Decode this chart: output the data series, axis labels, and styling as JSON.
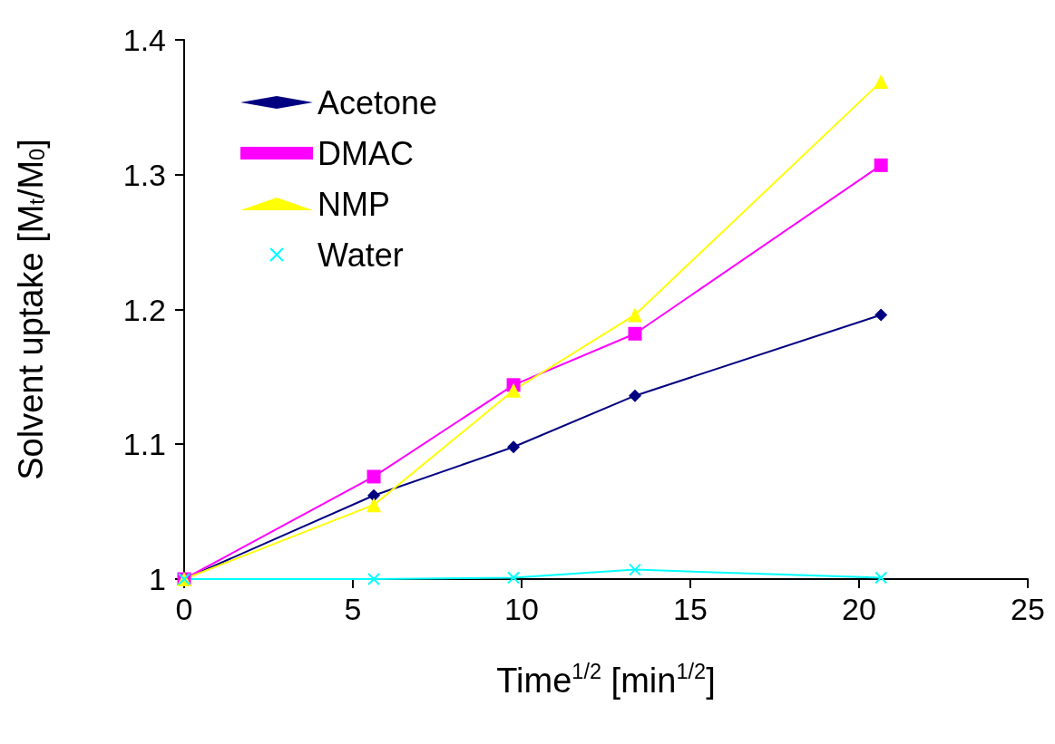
{
  "chart_data": {
    "type": "line",
    "xlabel": "Time$^{1/2}$ [min$^{1/2}$]",
    "ylabel": "Solvent uptake [M$_{t}$/M$_{0}$]",
    "x": [
      0,
      5.62,
      9.76,
      13.36,
      20.65
    ],
    "series": [
      {
        "name": "Acetone",
        "color": "#000080",
        "marker": "diamond",
        "values": [
          1,
          1.062,
          1.098,
          1.136,
          1.196
        ]
      },
      {
        "name": "DMAC",
        "color": "#ff00ff",
        "marker": "square",
        "values": [
          1,
          1.076,
          1.144,
          1.182,
          1.307
        ]
      },
      {
        "name": "NMP",
        "color": "#ffff00",
        "marker": "triangle",
        "values": [
          1,
          1.055,
          1.14,
          1.196,
          1.369
        ]
      },
      {
        "name": "Water",
        "color": "#00ffff",
        "marker": "cross",
        "values": [
          1,
          1.0,
          1.001,
          1.007,
          1.001
        ]
      }
    ],
    "xlim": [
      0,
      25
    ],
    "xticks": [
      0,
      5,
      10,
      15,
      20,
      25
    ],
    "ylim": [
      1,
      1.4
    ],
    "yticks": [
      1,
      1.1,
      1.2,
      1.3,
      1.4
    ],
    "grid": false,
    "legend": "top left",
    "line_style": "solid"
  }
}
